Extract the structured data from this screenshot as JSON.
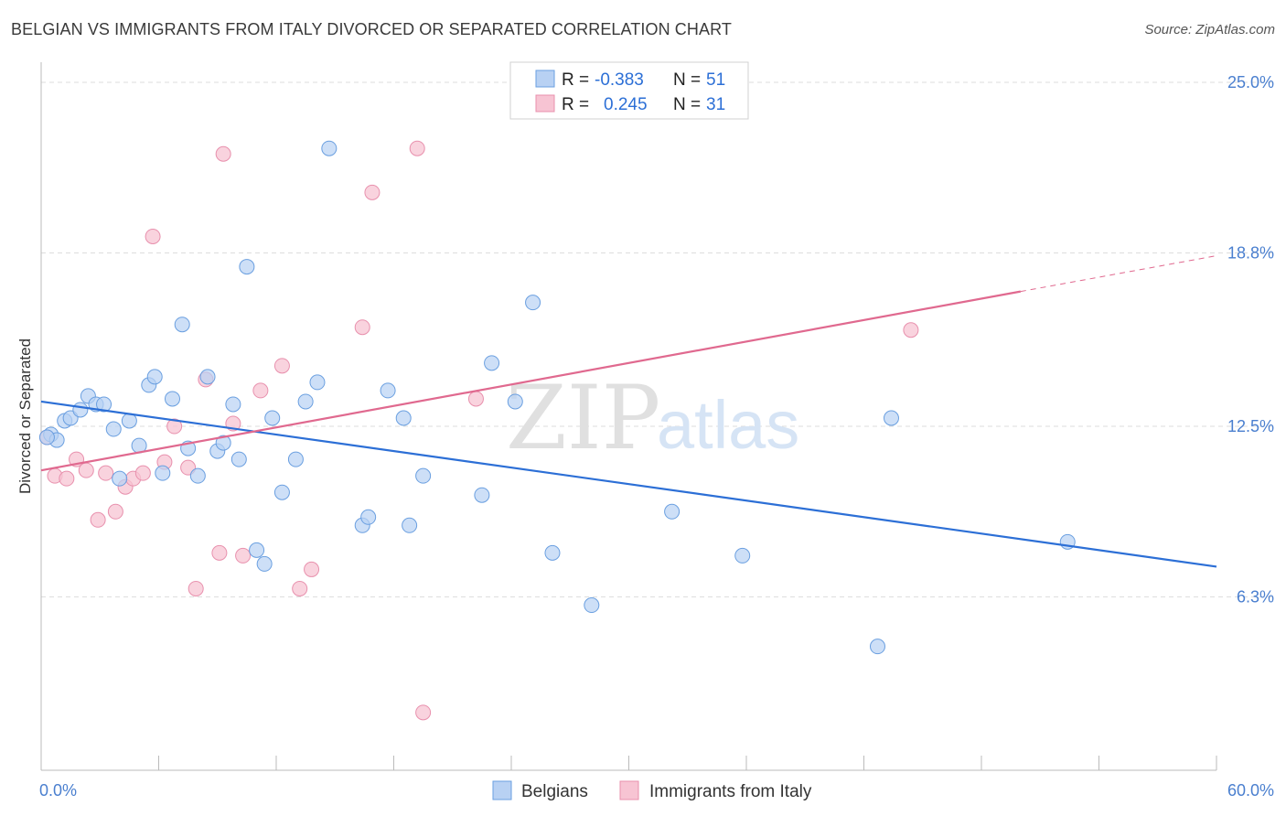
{
  "title": "BELGIAN VS IMMIGRANTS FROM ITALY DIVORCED OR SEPARATED CORRELATION CHART",
  "source": "Source: ZipAtlas.com",
  "watermark": {
    "zip": "ZIP",
    "atlas": "atlas"
  },
  "colors": {
    "belgians_fill": "#b8d1f3",
    "belgians_stroke": "#6a9fe0",
    "belgians_line": "#2c6fd6",
    "italy_fill": "#f7c4d3",
    "italy_stroke": "#e890ad",
    "italy_line": "#e0698f",
    "axis_label": "#4a7fcf",
    "grid": "#dddddd"
  },
  "legend": {
    "rows": [
      {
        "r_label": "R =",
        "r_value": "-0.383",
        "n_label": "N =",
        "n_value": "51"
      },
      {
        "r_label": "R =",
        "r_value": "0.245",
        "n_label": "N =",
        "n_value": "31"
      }
    ]
  },
  "chart_data": {
    "type": "scatter",
    "title": "BELGIAN VS IMMIGRANTS FROM ITALY DIVORCED OR SEPARATED CORRELATION CHART",
    "xlabel": "",
    "ylabel": "Divorced or Separated",
    "xlim": [
      0,
      60
    ],
    "ylim": [
      0,
      25.5
    ],
    "x_tick_labels": [
      "0.0%",
      "60.0%"
    ],
    "y_ticks": [
      6.3,
      12.5,
      18.8,
      25.0
    ],
    "y_tick_labels": [
      "6.3%",
      "12.5%",
      "18.8%",
      "25.0%"
    ],
    "grid": "horizontal dashed",
    "legend_placement": "top-center",
    "series": [
      {
        "name": "Belgians",
        "points": [
          [
            0.5,
            12.2
          ],
          [
            0.8,
            12.0
          ],
          [
            1.2,
            12.7
          ],
          [
            1.5,
            12.8
          ],
          [
            2.0,
            13.1
          ],
          [
            2.4,
            13.6
          ],
          [
            2.8,
            13.3
          ],
          [
            3.2,
            13.3
          ],
          [
            3.7,
            12.4
          ],
          [
            4.0,
            10.6
          ],
          [
            4.5,
            12.7
          ],
          [
            5.0,
            11.8
          ],
          [
            5.5,
            14.0
          ],
          [
            5.8,
            14.3
          ],
          [
            6.2,
            10.8
          ],
          [
            6.7,
            13.5
          ],
          [
            7.2,
            16.2
          ],
          [
            7.5,
            11.7
          ],
          [
            8.0,
            10.7
          ],
          [
            8.5,
            14.3
          ],
          [
            9.0,
            11.6
          ],
          [
            9.3,
            11.9
          ],
          [
            9.8,
            13.3
          ],
          [
            10.1,
            11.3
          ],
          [
            10.5,
            18.3
          ],
          [
            11.0,
            8.0
          ],
          [
            11.4,
            7.5
          ],
          [
            11.8,
            12.8
          ],
          [
            12.3,
            10.1
          ],
          [
            13.0,
            11.3
          ],
          [
            13.5,
            13.4
          ],
          [
            14.1,
            14.1
          ],
          [
            14.7,
            22.6
          ],
          [
            16.4,
            8.9
          ],
          [
            16.7,
            9.2
          ],
          [
            17.7,
            13.8
          ],
          [
            18.5,
            12.8
          ],
          [
            18.8,
            8.9
          ],
          [
            19.5,
            10.7
          ],
          [
            22.5,
            10.0
          ],
          [
            23.0,
            14.8
          ],
          [
            24.2,
            13.4
          ],
          [
            25.1,
            17.0
          ],
          [
            26.1,
            7.9
          ],
          [
            28.1,
            6.0
          ],
          [
            32.2,
            9.4
          ],
          [
            35.8,
            7.8
          ],
          [
            42.7,
            4.5
          ],
          [
            43.4,
            12.8
          ],
          [
            52.4,
            8.3
          ],
          [
            0.3,
            12.1
          ]
        ],
        "trend": {
          "x0": 0,
          "y0": 13.4,
          "x1": 60,
          "y1": 7.4
        }
      },
      {
        "name": "Immigrants from Italy",
        "points": [
          [
            0.3,
            12.1
          ],
          [
            0.7,
            10.7
          ],
          [
            1.3,
            10.6
          ],
          [
            1.8,
            11.3
          ],
          [
            2.3,
            10.9
          ],
          [
            2.9,
            9.1
          ],
          [
            3.3,
            10.8
          ],
          [
            3.8,
            9.4
          ],
          [
            4.3,
            10.3
          ],
          [
            4.7,
            10.6
          ],
          [
            5.2,
            10.8
          ],
          [
            5.7,
            19.4
          ],
          [
            6.3,
            11.2
          ],
          [
            6.8,
            12.5
          ],
          [
            7.5,
            11.0
          ],
          [
            7.9,
            6.6
          ],
          [
            8.4,
            14.2
          ],
          [
            9.1,
            7.9
          ],
          [
            9.3,
            22.4
          ],
          [
            9.8,
            12.6
          ],
          [
            10.3,
            7.8
          ],
          [
            11.2,
            13.8
          ],
          [
            12.3,
            14.7
          ],
          [
            13.2,
            6.6
          ],
          [
            13.8,
            7.3
          ],
          [
            16.4,
            16.1
          ],
          [
            16.9,
            21.0
          ],
          [
            19.2,
            22.6
          ],
          [
            19.5,
            2.1
          ],
          [
            22.2,
            13.5
          ],
          [
            44.4,
            16.0
          ]
        ],
        "trend": {
          "x0": 0,
          "y0": 10.9,
          "x1": 50,
          "y1": 17.4,
          "dash_to_x": 60,
          "dash_to_y": 18.7
        }
      }
    ]
  },
  "bottom_legend": [
    "Belgians",
    "Immigrants from Italy"
  ]
}
